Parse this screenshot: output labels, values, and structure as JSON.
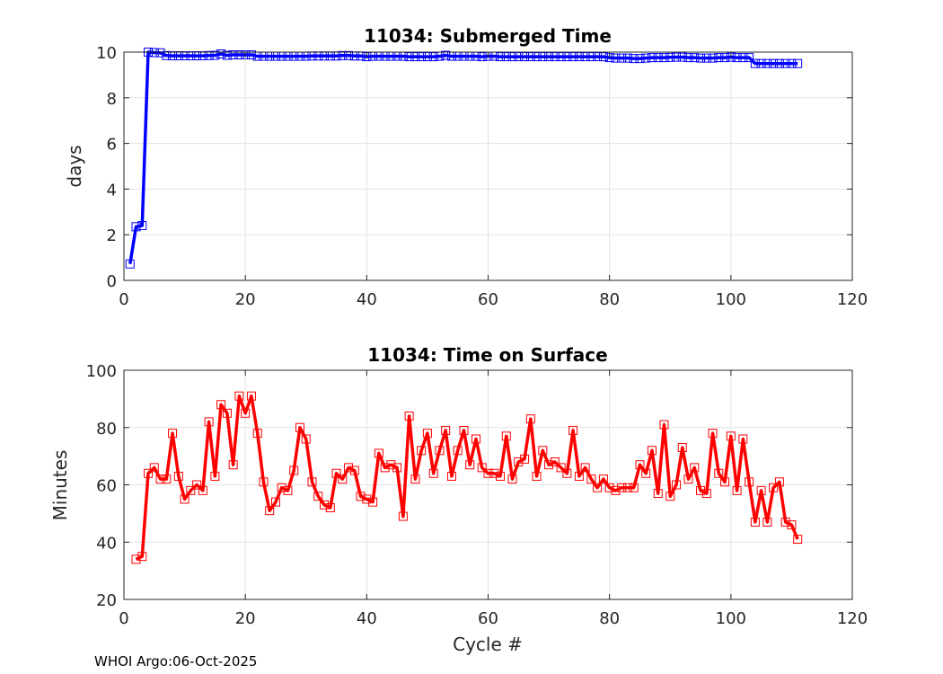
{
  "footer_text": "WHOI Argo:06-Oct-2025",
  "chart_data": [
    {
      "type": "line",
      "title": "11034: Submerged Time",
      "xlabel": "",
      "ylabel": "days",
      "xlim": [
        0,
        120
      ],
      "ylim": [
        0,
        10
      ],
      "xticks": [
        0,
        20,
        40,
        60,
        80,
        100,
        120
      ],
      "yticks": [
        0,
        2,
        4,
        6,
        8,
        10
      ],
      "grid": true,
      "color": "#0000ff",
      "marker": "square",
      "series": [
        {
          "name": "Submerged Time",
          "x": [
            1,
            2,
            3,
            4,
            5,
            6,
            7,
            8,
            9,
            10,
            11,
            12,
            13,
            14,
            15,
            16,
            17,
            18,
            19,
            20,
            21,
            22,
            23,
            24,
            25,
            26,
            27,
            28,
            29,
            30,
            31,
            32,
            33,
            34,
            35,
            36,
            37,
            38,
            39,
            40,
            41,
            42,
            43,
            44,
            45,
            46,
            47,
            48,
            49,
            50,
            51,
            52,
            53,
            54,
            55,
            56,
            57,
            58,
            59,
            60,
            61,
            62,
            63,
            64,
            65,
            66,
            67,
            68,
            69,
            70,
            71,
            72,
            73,
            74,
            75,
            76,
            77,
            78,
            79,
            80,
            81,
            82,
            83,
            84,
            85,
            86,
            87,
            88,
            89,
            90,
            91,
            92,
            93,
            94,
            95,
            96,
            97,
            98,
            99,
            100,
            101,
            102,
            103,
            104,
            105,
            106,
            107,
            108,
            109,
            110,
            111
          ],
          "values": [
            0.72,
            2.35,
            2.4,
            10.0,
            9.98,
            9.97,
            9.85,
            9.84,
            9.84,
            9.84,
            9.84,
            9.84,
            9.84,
            9.85,
            9.86,
            9.92,
            9.86,
            9.88,
            9.88,
            9.88,
            9.88,
            9.82,
            9.82,
            9.82,
            9.82,
            9.82,
            9.82,
            9.82,
            9.82,
            9.82,
            9.83,
            9.83,
            9.83,
            9.83,
            9.83,
            9.85,
            9.85,
            9.83,
            9.83,
            9.8,
            9.82,
            9.82,
            9.82,
            9.82,
            9.82,
            9.82,
            9.8,
            9.8,
            9.8,
            9.8,
            9.8,
            9.82,
            9.86,
            9.82,
            9.82,
            9.82,
            9.82,
            9.82,
            9.8,
            9.82,
            9.82,
            9.8,
            9.8,
            9.8,
            9.8,
            9.8,
            9.8,
            9.8,
            9.8,
            9.8,
            9.8,
            9.8,
            9.8,
            9.8,
            9.8,
            9.8,
            9.8,
            9.8,
            9.8,
            9.76,
            9.74,
            9.74,
            9.74,
            9.72,
            9.72,
            9.74,
            9.76,
            9.76,
            9.76,
            9.77,
            9.78,
            9.78,
            9.76,
            9.76,
            9.74,
            9.74,
            9.74,
            9.76,
            9.76,
            9.78,
            9.76,
            9.76,
            9.76,
            9.5,
            9.5,
            9.5,
            9.5,
            9.5,
            9.5,
            9.5,
            9.5
          ]
        }
      ]
    },
    {
      "type": "line",
      "title": "11034: Time on Surface",
      "xlabel": "Cycle #",
      "ylabel": "Minutes",
      "xlim": [
        0,
        120
      ],
      "ylim": [
        20,
        100
      ],
      "xticks": [
        0,
        20,
        40,
        60,
        80,
        100,
        120
      ],
      "yticks": [
        20,
        40,
        60,
        80,
        100
      ],
      "grid": true,
      "color": "#ff0000",
      "marker": "square",
      "series": [
        {
          "name": "Time on Surface",
          "x": [
            2,
            3,
            4,
            5,
            6,
            7,
            8,
            9,
            10,
            11,
            12,
            13,
            14,
            15,
            16,
            17,
            18,
            19,
            20,
            21,
            22,
            23,
            24,
            25,
            26,
            27,
            28,
            29,
            30,
            31,
            32,
            33,
            34,
            35,
            36,
            37,
            38,
            39,
            40,
            41,
            42,
            43,
            44,
            45,
            46,
            47,
            48,
            49,
            50,
            51,
            52,
            53,
            54,
            55,
            56,
            57,
            58,
            59,
            60,
            61,
            62,
            63,
            64,
            65,
            66,
            67,
            68,
            69,
            70,
            71,
            72,
            73,
            74,
            75,
            76,
            77,
            78,
            79,
            80,
            81,
            82,
            83,
            84,
            85,
            86,
            87,
            88,
            89,
            90,
            91,
            92,
            93,
            94,
            95,
            96,
            97,
            98,
            99,
            100,
            101,
            102,
            103,
            104,
            105,
            106,
            107,
            108,
            109,
            110,
            111
          ],
          "values": [
            34,
            35,
            64,
            66,
            62,
            62,
            78,
            63,
            55,
            58,
            60,
            58,
            82,
            63,
            88,
            85,
            67,
            91,
            85,
            91,
            78,
            61,
            51,
            54,
            59,
            58,
            65,
            80,
            76,
            61,
            56,
            53,
            52,
            64,
            62,
            66,
            65,
            56,
            55,
            54,
            71,
            66,
            67,
            66,
            49,
            84,
            62,
            72,
            78,
            64,
            72,
            79,
            63,
            72,
            79,
            67,
            76,
            66,
            64,
            64,
            63,
            77,
            62,
            68,
            69,
            83,
            63,
            72,
            67,
            68,
            66,
            64,
            79,
            63,
            66,
            62,
            59,
            62,
            59,
            58,
            59,
            59,
            59,
            67,
            64,
            72,
            57,
            81,
            56,
            60,
            73,
            62,
            66,
            58,
            57,
            78,
            64,
            61,
            77,
            58,
            76,
            61,
            47,
            58,
            47,
            59,
            61,
            47,
            46,
            41
          ]
        }
      ]
    }
  ]
}
